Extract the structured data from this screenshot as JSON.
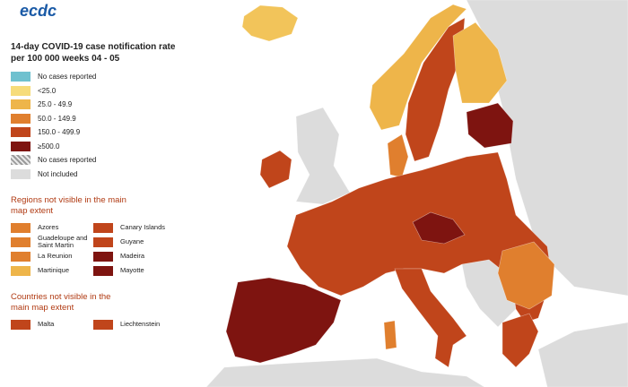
{
  "logo": {
    "text": "ecdc"
  },
  "title": "14-day COVID-19 case notification rate per 100 000 weeks 04 - 05",
  "legend": {
    "items": [
      {
        "label": "No cases reported",
        "color": "#6fc1cf"
      },
      {
        "label": "<25.0",
        "color": "#f6dc7a"
      },
      {
        "label": "25.0 - 49.9",
        "color": "#eeb54a"
      },
      {
        "label": "50.0 - 149.9",
        "color": "#e07f2e"
      },
      {
        "label": "150.0 - 499.9",
        "color": "#c0451b"
      },
      {
        "label": "≥500.0",
        "color": "#7e1410"
      },
      {
        "label": "No cases reported",
        "color": "#9a9a9a",
        "hatched": true
      },
      {
        "label": "Not included",
        "color": "#dcdcdc"
      }
    ]
  },
  "regions": {
    "title": "Regions not visible in the main map extent",
    "items": [
      {
        "label": "Azores",
        "color": "#e07f2e"
      },
      {
        "label": "Canary Islands",
        "color": "#c0451b"
      },
      {
        "label": "Guadeloupe and Saint Martin",
        "color": "#e07f2e"
      },
      {
        "label": "Guyane",
        "color": "#c0451b"
      },
      {
        "label": "La Reunion",
        "color": "#e07f2e"
      },
      {
        "label": "Madeira",
        "color": "#7e1410"
      },
      {
        "label": "Martinique",
        "color": "#eeb54a"
      },
      {
        "label": "Mayotte",
        "color": "#7e1410"
      }
    ]
  },
  "countries": {
    "title": "Countries not visible in the main map extent",
    "items": [
      {
        "label": "Malta",
        "color": "#c0451b"
      },
      {
        "label": "Liechtenstein",
        "color": "#c0451b"
      }
    ]
  }
}
